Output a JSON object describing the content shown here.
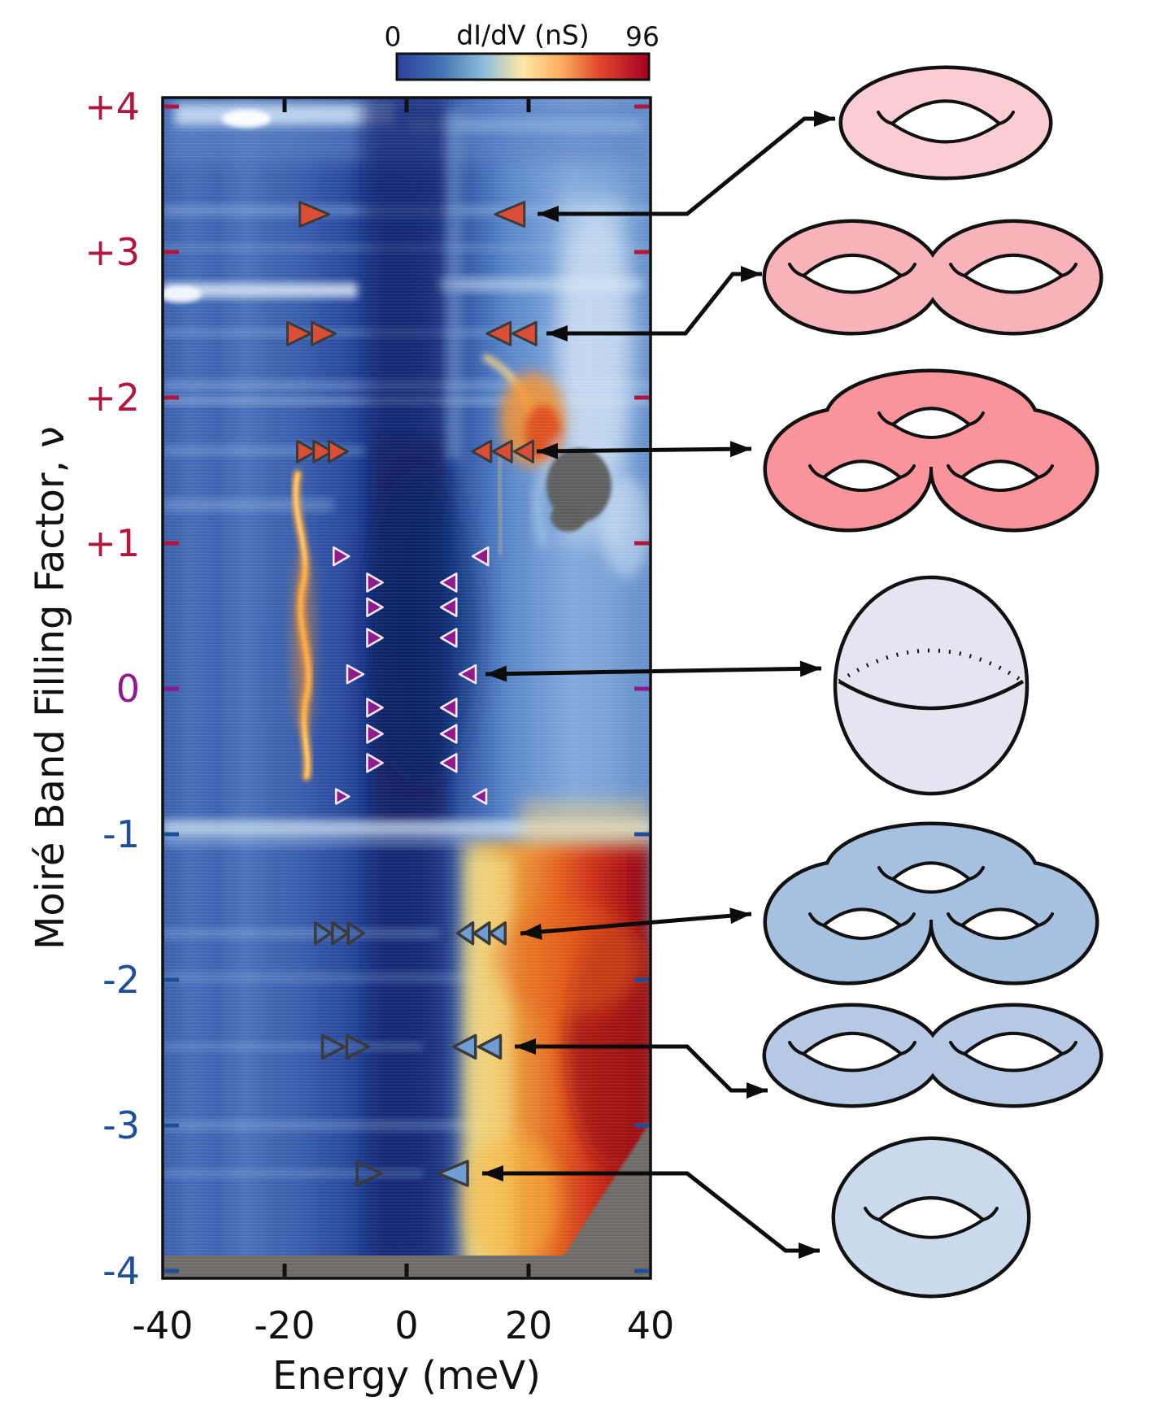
{
  "figure": {
    "colorbar": {
      "min_label": "0",
      "title": "dI/dV (nS)",
      "max_label": "96"
    },
    "x_axis": {
      "title": "Energy (meV)",
      "ticks": [
        {
          "label": "-40",
          "value": -40
        },
        {
          "label": "-20",
          "value": -20
        },
        {
          "label": "0",
          "value": 0
        },
        {
          "label": "20",
          "value": 20
        },
        {
          "label": "40",
          "value": 40
        }
      ]
    },
    "y_axis": {
      "title": "Moiré Band Filling Factor, ν",
      "ticks": [
        {
          "label": "+4",
          "value": 4,
          "color": "#b2163f"
        },
        {
          "label": "+3",
          "value": 3,
          "color": "#b2163f"
        },
        {
          "label": "+2",
          "value": 2,
          "color": "#b2163f"
        },
        {
          "label": "+1",
          "value": 1,
          "color": "#b2163f"
        },
        {
          "label": "0",
          "value": 0,
          "color": "#8e188e"
        },
        {
          "label": "-1",
          "value": -1,
          "color": "#1d4f9b"
        },
        {
          "label": "-2",
          "value": -2,
          "color": "#1d4f9b"
        },
        {
          "label": "-3",
          "value": -3,
          "color": "#1d4f9b"
        },
        {
          "label": "-4",
          "value": -4,
          "color": "#1d4f9b"
        }
      ]
    }
  },
  "chart_data": {
    "type": "heatmap",
    "title": "",
    "xlabel": "Energy (meV)",
    "ylabel": "Moiré Band Filling Factor, ν",
    "x_range_meV": [
      -40,
      40
    ],
    "y_range_filling": [
      -4,
      4
    ],
    "colorbar": {
      "label": "dI/dV (nS)",
      "min": 0,
      "max": 96,
      "colormap": "blue-white-yellow-red"
    },
    "marker_rows": [
      {
        "filling": 3.26,
        "style": "red",
        "right_energies_meV": [
          -15.1
        ],
        "left_energies_meV": [
          16.9
        ]
      },
      {
        "filling": 2.44,
        "style": "red",
        "right_energies_meV": [
          -17.6,
          -13.6
        ],
        "left_energies_meV": [
          15.1,
          19.3
        ]
      },
      {
        "filling": 1.63,
        "style": "red",
        "right_energies_meV": [
          -16.4,
          -13.7,
          -11.2
        ],
        "left_energies_meV": [
          12.3,
          15.7,
          19.2
        ]
      },
      {
        "filling": 0.91,
        "style": "purple",
        "right_energies_meV": [
          -10.7
        ],
        "left_energies_meV": [
          12.1
        ]
      },
      {
        "filling": 0.73,
        "style": "purple",
        "right_energies_meV": [
          -5.2
        ],
        "left_energies_meV": [
          6.9
        ]
      },
      {
        "filling": 0.56,
        "style": "purple",
        "right_energies_meV": [
          -5.2
        ],
        "left_energies_meV": [
          6.9
        ]
      },
      {
        "filling": 0.35,
        "style": "purple",
        "right_energies_meV": [
          -5.2
        ],
        "left_energies_meV": [
          6.9
        ]
      },
      {
        "filling": 0.1,
        "style": "purple",
        "right_energies_meV": [
          -8.4
        ],
        "left_energies_meV": [
          10
        ]
      },
      {
        "filling": -0.13,
        "style": "purple",
        "right_energies_meV": [
          -5.2
        ],
        "left_energies_meV": [
          6.9
        ]
      },
      {
        "filling": -0.31,
        "style": "purple",
        "right_energies_meV": [
          -5.2
        ],
        "left_energies_meV": [
          6.9
        ]
      },
      {
        "filling": -0.51,
        "style": "purple",
        "right_energies_meV": [
          -5.2
        ],
        "left_energies_meV": [
          6.9
        ]
      },
      {
        "filling": -0.74,
        "style": "purple",
        "right_energies_meV": [
          -10.5
        ],
        "left_energies_meV": [
          12
        ]
      },
      {
        "filling": -1.68,
        "style": "gray",
        "right_energies_meV": [
          -13.7,
          -10.9,
          -8.3
        ],
        "left_energies_meV": [
          9.6,
          12.3,
          14.9
        ]
      },
      {
        "filling": -2.46,
        "style": "gray",
        "right_energies_meV": [
          -12,
          -8
        ],
        "left_energies_meV": [
          9.5,
          13.6
        ]
      },
      {
        "filling": -3.33,
        "style": "gray",
        "right_energies_meV": [
          -6.1
        ],
        "left_energies_meV": [
          7.6
        ]
      }
    ],
    "surfaces": [
      {
        "name": "torus-genus-1-pink",
        "genus": 1,
        "fill": "#f9cdd1"
      },
      {
        "name": "torus-genus-2-pink",
        "genus": 2,
        "fill": "#f8b2b9"
      },
      {
        "name": "torus-genus-3-pink",
        "genus": 3,
        "fill": "#f9949b"
      },
      {
        "name": "sphere",
        "genus": 0,
        "fill": "#e8e3f0"
      },
      {
        "name": "torus-genus-3-blue",
        "genus": 3,
        "fill": "#a6c0e0"
      },
      {
        "name": "torus-genus-2-blue",
        "genus": 2,
        "fill": "#b5c8e4"
      },
      {
        "name": "torus-genus-1-blue",
        "genus": 1,
        "fill": "#cbd9ec"
      }
    ],
    "links": [
      {
        "filling": 3.26,
        "surface": "torus-genus-1-pink"
      },
      {
        "filling": 2.44,
        "surface": "torus-genus-2-pink"
      },
      {
        "filling": 1.63,
        "surface": "torus-genus-3-pink"
      },
      {
        "filling": 0.1,
        "surface": "sphere"
      },
      {
        "filling": -1.68,
        "surface": "torus-genus-3-blue"
      },
      {
        "filling": -2.46,
        "surface": "torus-genus-2-blue"
      },
      {
        "filling": -3.33,
        "surface": "torus-genus-1-blue"
      }
    ]
  }
}
